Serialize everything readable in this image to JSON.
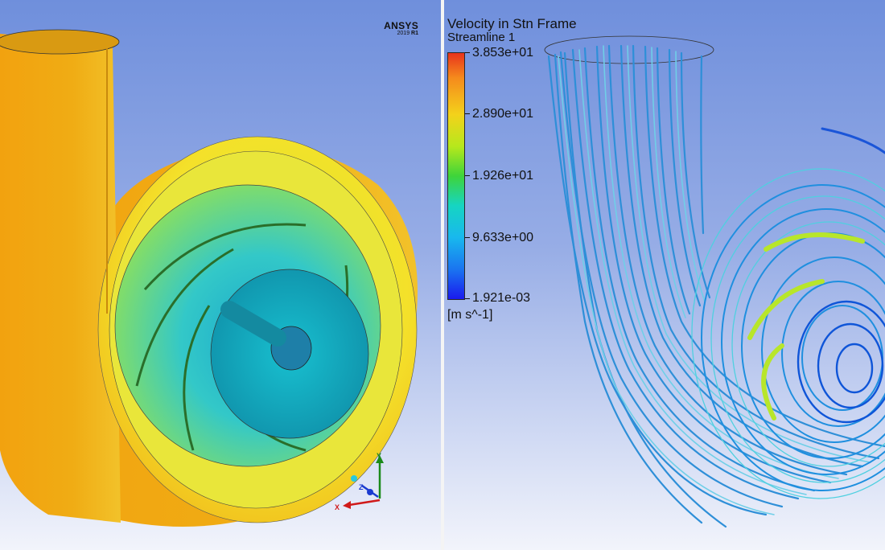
{
  "left_view": {
    "logo": {
      "name": "ANSYS",
      "version": "2019",
      "release": "R1"
    },
    "triad": {
      "x_label": "X",
      "y_label": "Y",
      "z_label": "Z"
    }
  },
  "right_view": {
    "legend": {
      "title": "Velocity in Stn Frame",
      "subtitle": "Streamline 1",
      "ticks": [
        "3.853e+01",
        "2.890e+01",
        "1.926e+01",
        "9.633e+00",
        "1.921e-03"
      ],
      "units": "[m s^-1]"
    }
  },
  "colors": {
    "volute": "#f2c71a",
    "impeller": "#1bb5d8",
    "streamline": "#2f9fe0"
  }
}
